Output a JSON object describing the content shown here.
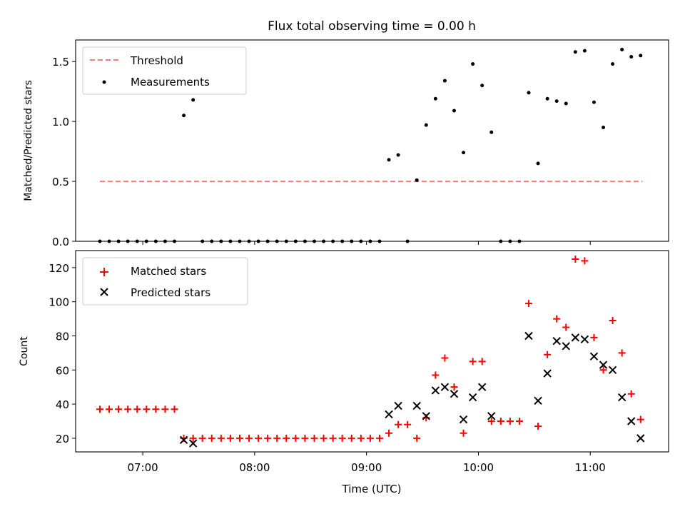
{
  "chart_data": [
    {
      "type": "scatter",
      "title": "Flux total observing time = 0.00 h",
      "xlabel": "",
      "ylabel": "Matched/Predicted stars",
      "xlim": [
        "06:24",
        "11:42"
      ],
      "ylim": [
        0,
        1.68
      ],
      "yticks": [
        "0.0",
        "0.5",
        "1.0",
        "1.5"
      ],
      "legend_position": "upper-left",
      "threshold": {
        "name": "Threshold",
        "value": 0.5,
        "x_start": "06:37",
        "x_end": "11:28",
        "color": "#f08080",
        "style": "dashed"
      },
      "series": [
        {
          "name": "Measurements",
          "color": "#000000",
          "marker": "dot",
          "points": [
            [
              "06:37",
              0.0
            ],
            [
              "06:42",
              0.0
            ],
            [
              "06:47",
              0.0
            ],
            [
              "06:52",
              0.0
            ],
            [
              "06:57",
              0.0
            ],
            [
              "07:02",
              0.0
            ],
            [
              "07:07",
              0.0
            ],
            [
              "07:12",
              0.0
            ],
            [
              "07:17",
              0.0
            ],
            [
              "07:22",
              1.05
            ],
            [
              "07:27",
              1.18
            ],
            [
              "07:32",
              0.0
            ],
            [
              "07:37",
              0.0
            ],
            [
              "07:42",
              0.0
            ],
            [
              "07:47",
              0.0
            ],
            [
              "07:52",
              0.0
            ],
            [
              "07:57",
              0.0
            ],
            [
              "08:02",
              0.0
            ],
            [
              "08:07",
              0.0
            ],
            [
              "08:12",
              0.0
            ],
            [
              "08:17",
              0.0
            ],
            [
              "08:22",
              0.0
            ],
            [
              "08:27",
              0.0
            ],
            [
              "08:32",
              0.0
            ],
            [
              "08:37",
              0.0
            ],
            [
              "08:42",
              0.0
            ],
            [
              "08:47",
              0.0
            ],
            [
              "08:52",
              0.0
            ],
            [
              "08:57",
              0.0
            ],
            [
              "09:02",
              0.0
            ],
            [
              "09:07",
              0.0
            ],
            [
              "09:12",
              0.68
            ],
            [
              "09:17",
              0.72
            ],
            [
              "09:22",
              0.0
            ],
            [
              "09:27",
              0.51
            ],
            [
              "09:32",
              0.97
            ],
            [
              "09:37",
              1.19
            ],
            [
              "09:42",
              1.34
            ],
            [
              "09:47",
              1.09
            ],
            [
              "09:52",
              0.74
            ],
            [
              "09:57",
              1.48
            ],
            [
              "10:02",
              1.3
            ],
            [
              "10:07",
              0.91
            ],
            [
              "10:12",
              0.0
            ],
            [
              "10:17",
              0.0
            ],
            [
              "10:22",
              0.0
            ],
            [
              "10:27",
              1.24
            ],
            [
              "10:32",
              0.65
            ],
            [
              "10:37",
              1.19
            ],
            [
              "10:42",
              1.17
            ],
            [
              "10:47",
              1.15
            ],
            [
              "10:52",
              1.58
            ],
            [
              "10:57",
              1.59
            ],
            [
              "11:02",
              1.16
            ],
            [
              "11:07",
              0.95
            ],
            [
              "11:12",
              1.48
            ],
            [
              "11:17",
              1.6
            ],
            [
              "11:22",
              1.54
            ],
            [
              "11:27",
              1.55
            ]
          ]
        }
      ]
    },
    {
      "type": "scatter",
      "title": "",
      "xlabel": "Time (UTC)",
      "ylabel": "Count",
      "xlim": [
        "06:24",
        "11:42"
      ],
      "ylim": [
        12,
        130
      ],
      "yticks": [
        "20",
        "40",
        "60",
        "80",
        "100",
        "120"
      ],
      "xticks": [
        "07:00",
        "08:00",
        "09:00",
        "10:00",
        "11:00"
      ],
      "legend_position": "upper-left",
      "series": [
        {
          "name": "Matched stars",
          "color": "#ff0000",
          "marker": "plus",
          "points": [
            [
              "06:37",
              37
            ],
            [
              "06:42",
              37
            ],
            [
              "06:47",
              37
            ],
            [
              "06:52",
              37
            ],
            [
              "06:57",
              37
            ],
            [
              "07:02",
              37
            ],
            [
              "07:07",
              37
            ],
            [
              "07:12",
              37
            ],
            [
              "07:17",
              37
            ],
            [
              "07:22",
              20
            ],
            [
              "07:27",
              20
            ],
            [
              "07:32",
              20
            ],
            [
              "07:37",
              20
            ],
            [
              "07:42",
              20
            ],
            [
              "07:47",
              20
            ],
            [
              "07:52",
              20
            ],
            [
              "07:57",
              20
            ],
            [
              "08:02",
              20
            ],
            [
              "08:07",
              20
            ],
            [
              "08:12",
              20
            ],
            [
              "08:17",
              20
            ],
            [
              "08:22",
              20
            ],
            [
              "08:27",
              20
            ],
            [
              "08:32",
              20
            ],
            [
              "08:37",
              20
            ],
            [
              "08:42",
              20
            ],
            [
              "08:47",
              20
            ],
            [
              "08:52",
              20
            ],
            [
              "08:57",
              20
            ],
            [
              "09:02",
              20
            ],
            [
              "09:07",
              20
            ],
            [
              "09:12",
              23
            ],
            [
              "09:17",
              28
            ],
            [
              "09:22",
              28
            ],
            [
              "09:27",
              20
            ],
            [
              "09:32",
              32
            ],
            [
              "09:37",
              57
            ],
            [
              "09:42",
              67
            ],
            [
              "09:47",
              50
            ],
            [
              "09:52",
              23
            ],
            [
              "09:57",
              65
            ],
            [
              "10:02",
              65
            ],
            [
              "10:07",
              30
            ],
            [
              "10:12",
              30
            ],
            [
              "10:17",
              30
            ],
            [
              "10:22",
              30
            ],
            [
              "10:27",
              99
            ],
            [
              "10:32",
              27
            ],
            [
              "10:37",
              69
            ],
            [
              "10:42",
              90
            ],
            [
              "10:47",
              85
            ],
            [
              "10:52",
              125
            ],
            [
              "10:57",
              124
            ],
            [
              "11:02",
              79
            ],
            [
              "11:07",
              60
            ],
            [
              "11:12",
              89
            ],
            [
              "11:17",
              70
            ],
            [
              "11:22",
              46
            ],
            [
              "11:27",
              31
            ]
          ]
        },
        {
          "name": "Predicted stars",
          "color": "#000000",
          "marker": "x",
          "points": [
            [
              "07:22",
              19
            ],
            [
              "07:27",
              17
            ],
            [
              "09:12",
              34
            ],
            [
              "09:17",
              39
            ],
            [
              "09:27",
              39
            ],
            [
              "09:32",
              33
            ],
            [
              "09:37",
              48
            ],
            [
              "09:42",
              50
            ],
            [
              "09:47",
              46
            ],
            [
              "09:52",
              31
            ],
            [
              "09:57",
              44
            ],
            [
              "10:02",
              50
            ],
            [
              "10:07",
              33
            ],
            [
              "10:27",
              80
            ],
            [
              "10:32",
              42
            ],
            [
              "10:37",
              58
            ],
            [
              "10:42",
              77
            ],
            [
              "10:47",
              74
            ],
            [
              "10:52",
              79
            ],
            [
              "10:57",
              78
            ],
            [
              "11:02",
              68
            ],
            [
              "11:07",
              63
            ],
            [
              "11:12",
              60
            ],
            [
              "11:17",
              44
            ],
            [
              "11:22",
              30
            ],
            [
              "11:27",
              20
            ]
          ]
        }
      ]
    }
  ]
}
